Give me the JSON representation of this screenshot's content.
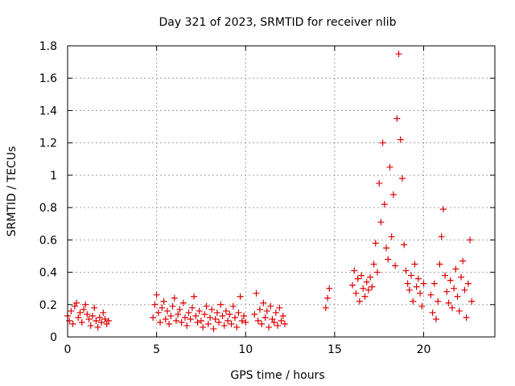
{
  "chart_data": {
    "type": "scatter",
    "title": "Day 321 of 2023, SRMTID for receiver nlib",
    "xlabel": "GPS time / hours",
    "ylabel": "SRMTID / TECUs",
    "xlim": [
      0,
      24
    ],
    "ylim": [
      0,
      1.8
    ],
    "grid": true,
    "marker": "+",
    "x_ticks": [
      0,
      5,
      10,
      15,
      20
    ],
    "y_ticks": [
      0,
      0.2,
      0.4,
      0.6,
      0.8,
      1,
      1.2,
      1.4,
      1.6,
      1.8
    ],
    "x_tick_labels": [
      "0",
      "5",
      "10",
      "15",
      "20"
    ],
    "y_tick_labels": [
      "0",
      "0.2",
      "0.4",
      "0.6",
      "0.8",
      "1",
      "1.2",
      "1.4",
      "1.6",
      "1.8"
    ],
    "series": [
      {
        "name": "SRMTID",
        "color": "#dd0000",
        "x": [
          0.0,
          0.1,
          0.2,
          0.3,
          0.4,
          0.5,
          0.6,
          0.7,
          0.8,
          0.9,
          1.0,
          1.1,
          1.2,
          1.3,
          1.4,
          1.5,
          1.6,
          1.7,
          1.8,
          1.9,
          2.0,
          2.1,
          2.2,
          2.3,
          4.8,
          4.9,
          5.0,
          5.1,
          5.2,
          5.3,
          5.4,
          5.5,
          5.6,
          5.7,
          5.8,
          5.9,
          6.0,
          6.1,
          6.2,
          6.3,
          6.4,
          6.5,
          6.6,
          6.7,
          6.8,
          6.9,
          7.0,
          7.1,
          7.2,
          7.3,
          7.4,
          7.5,
          7.6,
          7.7,
          7.8,
          7.9,
          8.0,
          8.1,
          8.2,
          8.3,
          8.4,
          8.5,
          8.6,
          8.7,
          8.8,
          8.9,
          9.0,
          9.1,
          9.2,
          9.3,
          9.4,
          9.5,
          9.6,
          9.7,
          9.8,
          9.9,
          10.0,
          10.5,
          10.6,
          10.7,
          10.8,
          10.9,
          11.0,
          11.1,
          11.2,
          11.3,
          11.4,
          11.5,
          11.6,
          11.7,
          11.8,
          11.9,
          12.0,
          12.1,
          12.2,
          14.5,
          14.6,
          14.7,
          16.0,
          16.1,
          16.2,
          16.3,
          16.4,
          16.5,
          16.6,
          16.7,
          16.8,
          16.9,
          17.0,
          17.1,
          17.2,
          17.3,
          17.4,
          17.5,
          17.6,
          17.7,
          17.8,
          17.9,
          18.0,
          18.1,
          18.2,
          18.3,
          18.4,
          18.5,
          18.6,
          18.7,
          18.8,
          18.9,
          19.0,
          19.1,
          19.2,
          19.3,
          19.4,
          19.5,
          19.6,
          19.7,
          19.8,
          19.9,
          20.0,
          20.4,
          20.5,
          20.6,
          20.7,
          20.8,
          20.9,
          21.0,
          21.1,
          21.2,
          21.3,
          21.4,
          21.5,
          21.6,
          21.7,
          21.8,
          21.9,
          22.0,
          22.1,
          22.2,
          22.3,
          22.4,
          22.5,
          22.6,
          22.7
        ],
        "y": [
          0.13,
          0.1,
          0.16,
          0.08,
          0.19,
          0.21,
          0.12,
          0.15,
          0.09,
          0.17,
          0.2,
          0.14,
          0.11,
          0.07,
          0.13,
          0.18,
          0.1,
          0.06,
          0.12,
          0.09,
          0.15,
          0.11,
          0.08,
          0.1,
          0.12,
          0.2,
          0.26,
          0.15,
          0.09,
          0.18,
          0.22,
          0.11,
          0.16,
          0.08,
          0.13,
          0.19,
          0.24,
          0.1,
          0.14,
          0.17,
          0.09,
          0.21,
          0.12,
          0.07,
          0.15,
          0.11,
          0.18,
          0.25,
          0.13,
          0.09,
          0.16,
          0.1,
          0.06,
          0.14,
          0.19,
          0.08,
          0.12,
          0.17,
          0.05,
          0.11,
          0.15,
          0.09,
          0.2,
          0.13,
          0.07,
          0.16,
          0.1,
          0.14,
          0.08,
          0.19,
          0.12,
          0.06,
          0.15,
          0.25,
          0.1,
          0.13,
          0.09,
          0.14,
          0.27,
          0.1,
          0.17,
          0.08,
          0.21,
          0.12,
          0.16,
          0.06,
          0.19,
          0.11,
          0.09,
          0.15,
          0.07,
          0.18,
          0.1,
          0.13,
          0.08,
          0.18,
          0.24,
          0.3,
          0.32,
          0.41,
          0.27,
          0.36,
          0.22,
          0.38,
          0.3,
          0.25,
          0.34,
          0.29,
          0.37,
          0.31,
          0.45,
          0.58,
          0.4,
          0.95,
          0.71,
          1.2,
          0.82,
          0.55,
          0.48,
          1.05,
          0.62,
          0.88,
          0.44,
          1.35,
          1.75,
          1.22,
          0.98,
          0.57,
          0.41,
          0.33,
          0.29,
          0.38,
          0.22,
          0.45,
          0.31,
          0.36,
          0.27,
          0.19,
          0.33,
          0.26,
          0.15,
          0.33,
          0.11,
          0.22,
          0.45,
          0.62,
          0.79,
          0.38,
          0.28,
          0.21,
          0.35,
          0.18,
          0.3,
          0.42,
          0.25,
          0.16,
          0.37,
          0.47,
          0.29,
          0.12,
          0.33,
          0.6,
          0.22
        ]
      }
    ]
  }
}
